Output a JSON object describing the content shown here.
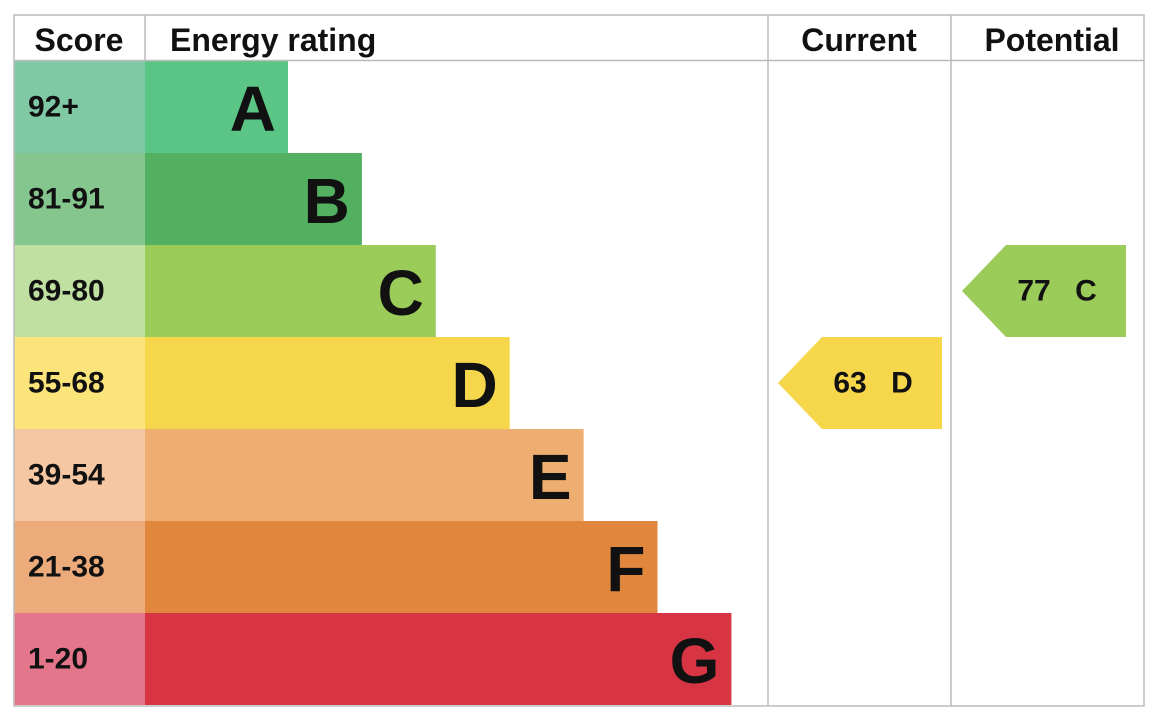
{
  "headers": {
    "score": "Score",
    "rating": "Energy rating",
    "current": "Current",
    "potential": "Potential"
  },
  "bands": [
    {
      "score": "92+",
      "rating": "A",
      "color": "#5bc585",
      "score_color": "#7fc9a5"
    },
    {
      "score": "81-91",
      "rating": "B",
      "color": "#52b060",
      "score_color": "#84c68d"
    },
    {
      "score": "69-80",
      "rating": "C",
      "color": "#9bcb59",
      "score_color": "#bfe0a0"
    },
    {
      "score": "55-68",
      "rating": "D",
      "color": "#f6d74b",
      "score_color": "#fbe47a"
    },
    {
      "score": "39-54",
      "rating": "E",
      "color": "#eeae6f",
      "score_color": "#f5c8a3"
    },
    {
      "score": "21-38",
      "rating": "F",
      "color": "#e0873d",
      "score_color": "#ebab7b"
    },
    {
      "score": "1-20",
      "rating": "G",
      "color": "#d73444",
      "score_color": "#e3768a"
    }
  ],
  "current": {
    "score": "63",
    "rating": "D"
  },
  "potential": {
    "score": "77",
    "rating": "C"
  }
}
